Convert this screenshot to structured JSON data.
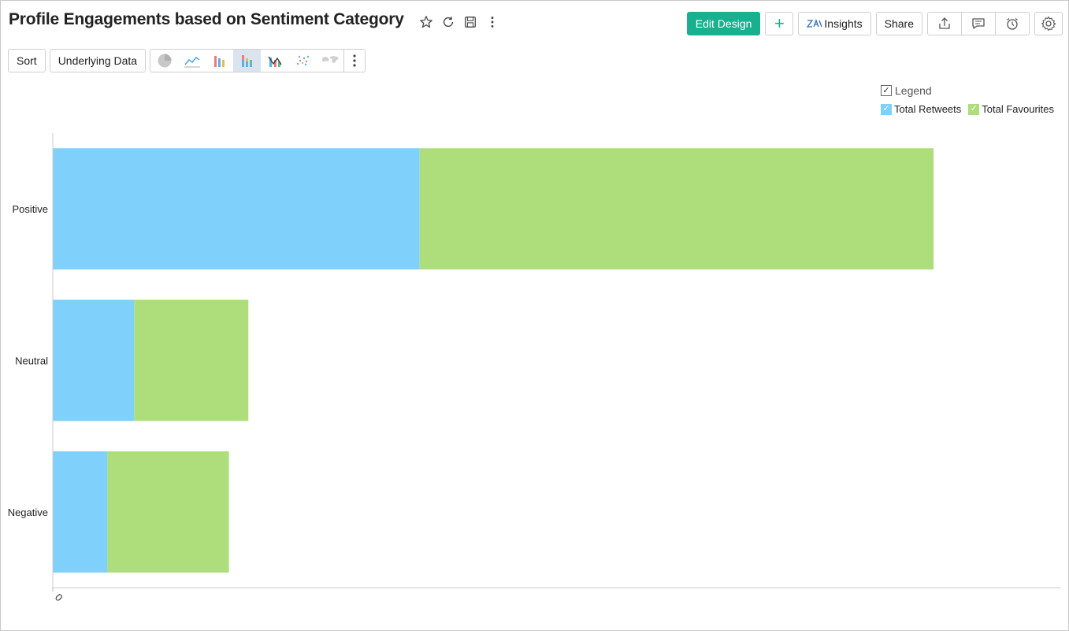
{
  "header": {
    "title": "Profile Engagements based on Sentiment Category",
    "edit_design": "Edit Design",
    "add": "+",
    "insights": "Insights",
    "share": "Share"
  },
  "toolbar": {
    "sort": "Sort",
    "underlying_data": "Underlying Data"
  },
  "legend": {
    "title": "Legend",
    "checked": true
  },
  "colors": {
    "accent": "#19b08f",
    "retweets": "#7fd0fa",
    "favourites": "#aede7b"
  },
  "chart_data": {
    "type": "bar",
    "orientation": "horizontal",
    "stacked": true,
    "categories": [
      "Positive",
      "Neutral",
      "Negative"
    ],
    "series": [
      {
        "name": "Total Retweets",
        "values": [
          30200,
          6700,
          4500
        ],
        "color": "#7fd0fa"
      },
      {
        "name": "Total Favourites",
        "values": [
          42300,
          9400,
          10000
        ],
        "color": "#aede7b"
      }
    ],
    "xticks": [
      "0",
      "100000",
      "200000",
      "300000",
      "400000",
      "500000",
      "600000",
      "700000"
    ],
    "xlim": [
      0,
      83000
    ],
    "grid": true,
    "legend_position": "top-right"
  }
}
